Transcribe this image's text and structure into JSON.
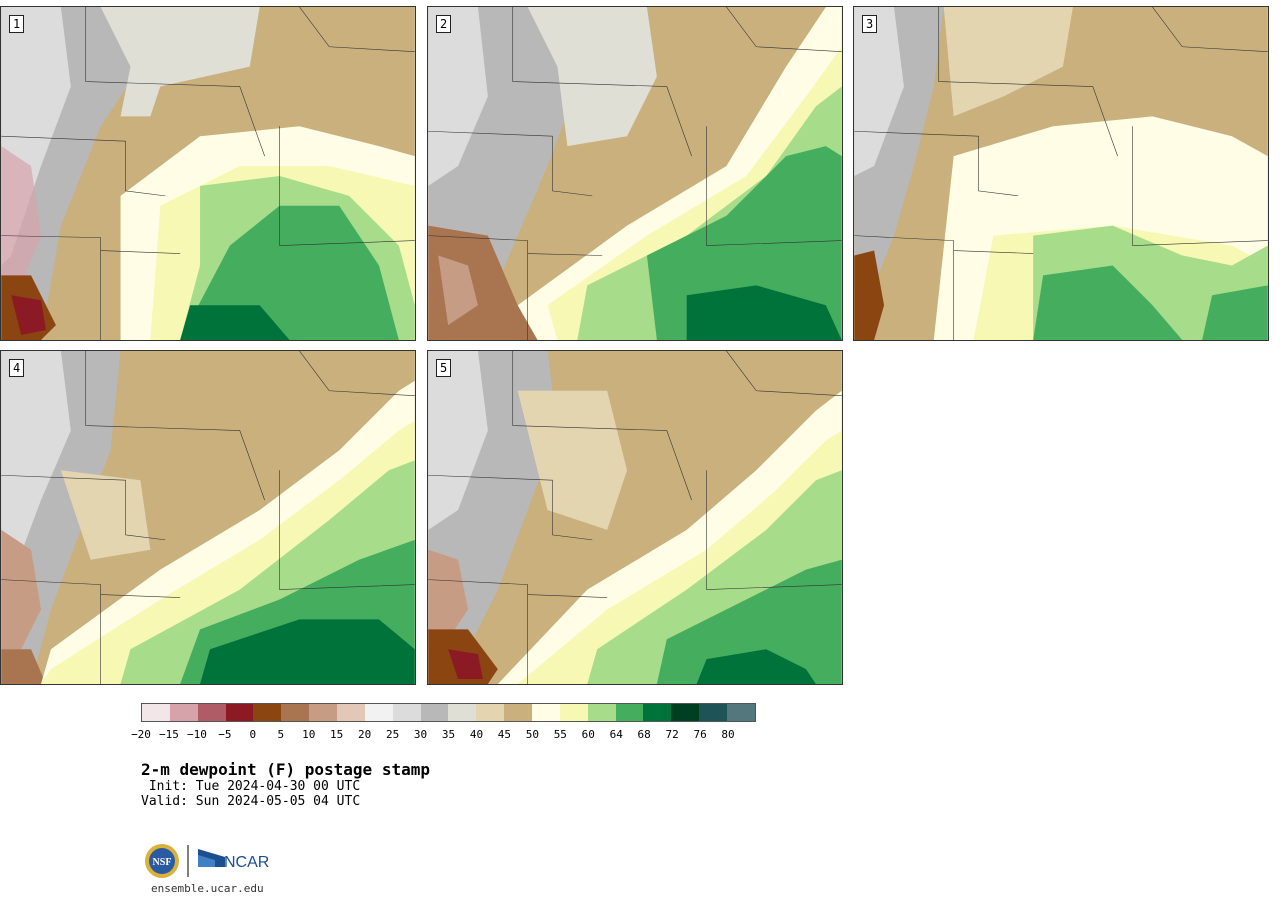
{
  "panels": [
    {
      "label": "1"
    },
    {
      "label": "2"
    },
    {
      "label": "3"
    },
    {
      "label": "4"
    },
    {
      "label": "5"
    }
  ],
  "legend": {
    "colors": [
      "#f3e6e8",
      "#d7a3ab",
      "#b05c66",
      "#8c1a24",
      "#8a4510",
      "#a87550",
      "#c79c84",
      "#e2c8b6",
      "#f2f2f2",
      "#dcdcdc",
      "#b8b8b8",
      "#dfdfd6",
      "#e3d5b0",
      "#c9b07c",
      "#fffde6",
      "#f6f8b4",
      "#a7dc8a",
      "#45ad5e",
      "#00733a",
      "#003f22",
      "#1e5456",
      "#53777d"
    ],
    "ticks": [
      "−20",
      "−15",
      "−10",
      "−5",
      "0",
      "5",
      "10",
      "15",
      "20",
      "25",
      "30",
      "35",
      "40",
      "45",
      "50",
      "55",
      "60",
      "64",
      "68",
      "72",
      "76",
      "80"
    ]
  },
  "title": "2-m dewpoint (F) postage stamp",
  "init": " Init: Tue 2024-04-30 00 UTC",
  "valid": "Valid: Sun 2024-05-05 04 UTC",
  "logos": {
    "nsf": "NSF",
    "ncar": "NCAR"
  },
  "website": "ensemble.ucar.edu"
}
